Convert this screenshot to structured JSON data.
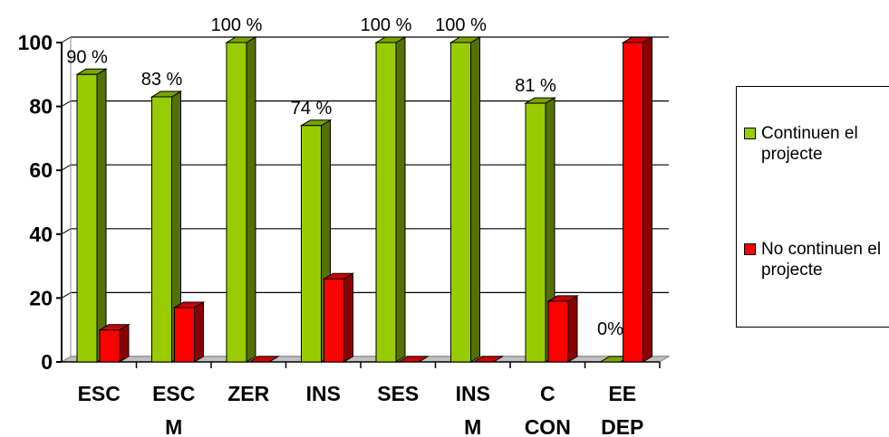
{
  "chart_data": {
    "type": "bar",
    "categories": [
      "ESC",
      "ESC M",
      "ZER",
      "INS",
      "SES",
      "INS M",
      "C CON",
      "EE DEP"
    ],
    "category_lines": [
      [
        "ESC"
      ],
      [
        "ESC",
        "M"
      ],
      [
        "ZER"
      ],
      [
        "INS"
      ],
      [
        "SES"
      ],
      [
        "INS",
        "M"
      ],
      [
        "C",
        "CON"
      ],
      [
        "EE",
        "DEP"
      ]
    ],
    "series": [
      {
        "name": "Continuen el projecte",
        "values": [
          90,
          83,
          100,
          74,
          100,
          100,
          81,
          0
        ],
        "color": "#99CC00"
      },
      {
        "name": "No continuen el projecte",
        "values": [
          10,
          17,
          0,
          26,
          0,
          0,
          19,
          100
        ],
        "color": "#FF0000"
      }
    ],
    "data_labels": [
      "90 %",
      "83 %",
      "100 %",
      "74 %",
      "100 %",
      "100 %",
      "81 %",
      "0%"
    ],
    "yticks": [
      0,
      20,
      40,
      60,
      80,
      100
    ],
    "ylim": [
      0,
      100
    ],
    "grid": true,
    "legend_position": "right",
    "title": "",
    "xlabel": "",
    "ylabel": ""
  },
  "legend": {
    "items": [
      {
        "label": "Continuen el projecte",
        "color": "#99CC00"
      },
      {
        "label": "No continuen el projecte",
        "color": "#FF0000"
      }
    ]
  }
}
